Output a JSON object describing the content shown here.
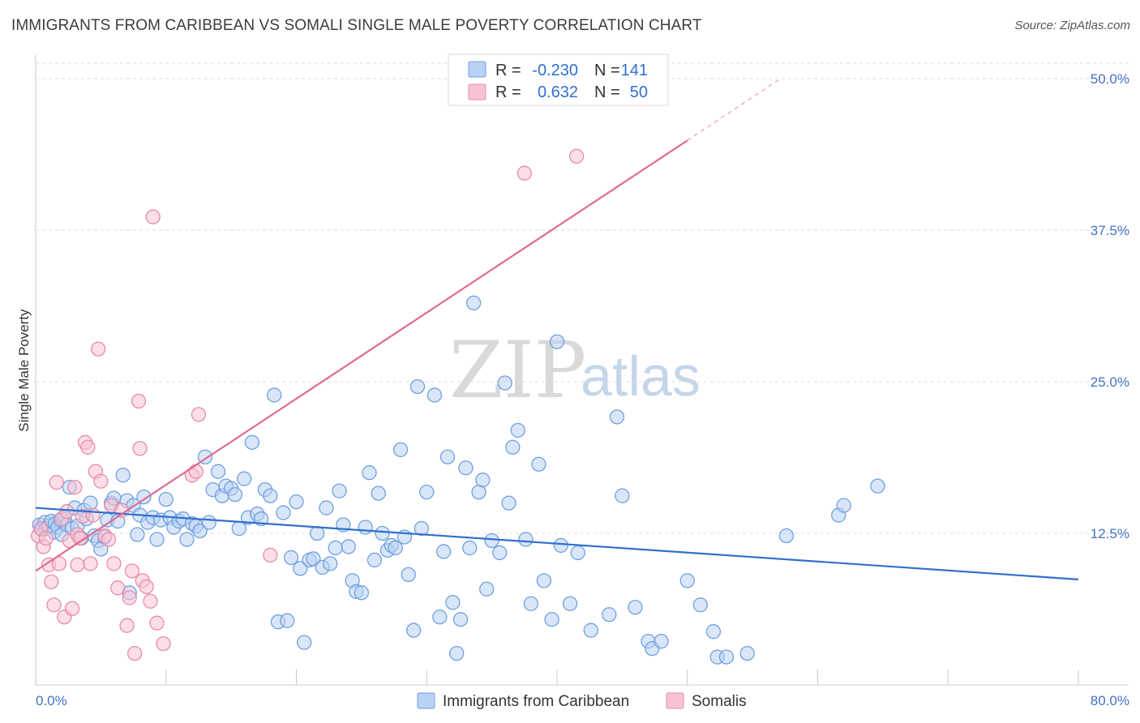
{
  "title": "IMMIGRANTS FROM CARIBBEAN VS SOMALI SINGLE MALE POVERTY CORRELATION CHART",
  "source": "Source: ZipAtlas.com",
  "watermark": {
    "zip": "ZIP",
    "atlas": "atlas"
  },
  "legend": {
    "rows": [
      {
        "r_label": "R =",
        "r_value": "-0.230",
        "n_label": "N =",
        "n_value": "141",
        "color": "#6fa0e0",
        "fill": "#b9d1f3"
      },
      {
        "r_label": "R =",
        "r_value": "0.632",
        "n_label": "N =",
        "n_value": "50",
        "color": "#e98aa9",
        "fill": "#f7c3d3"
      }
    ]
  },
  "bottom_legend": [
    "Immigrants from Caribbean",
    "Somalis"
  ],
  "chart_data": {
    "type": "scatter",
    "title": "IMMIGRANTS FROM CARIBBEAN VS SOMALI SINGLE MALE POVERTY CORRELATION CHART",
    "xlabel": "",
    "ylabel": "Single Male Poverty",
    "xlim": [
      0,
      80
    ],
    "ylim": [
      0,
      50
    ],
    "x_tick_labels": [
      "0.0%",
      "80.0%"
    ],
    "y_ticks": [
      12.5,
      25.0,
      37.5,
      50.0
    ],
    "y_tick_labels": [
      "12.5%",
      "25.0%",
      "37.5%",
      "50.0%"
    ],
    "grid": true,
    "legend_position": "top-center",
    "series": [
      {
        "name": "Immigrants from Caribbean",
        "color": "#6fa0e0",
        "fill": "#b9d1f3",
        "trend": {
          "x": [
            0,
            80
          ],
          "y": [
            14.6,
            8.7
          ]
        },
        "points": [
          [
            0.3,
            13.2
          ],
          [
            0.5,
            12.8
          ],
          [
            0.7,
            13.4
          ],
          [
            0.8,
            12.9
          ],
          [
            1.0,
            13.1
          ],
          [
            1.2,
            13.5
          ],
          [
            1.4,
            12.6
          ],
          [
            1.5,
            13.3
          ],
          [
            1.7,
            13.0
          ],
          [
            1.9,
            13.6
          ],
          [
            2.0,
            12.4
          ],
          [
            2.2,
            13.8
          ],
          [
            2.4,
            13.2
          ],
          [
            2.6,
            16.3
          ],
          [
            2.8,
            12.9
          ],
          [
            3.0,
            14.6
          ],
          [
            3.2,
            13.1
          ],
          [
            3.5,
            12.1
          ],
          [
            3.7,
            14.4
          ],
          [
            3.9,
            13.7
          ],
          [
            4.2,
            15.0
          ],
          [
            4.5,
            12.3
          ],
          [
            4.8,
            11.9
          ],
          [
            5.0,
            11.2
          ],
          [
            5.3,
            12.2
          ],
          [
            5.5,
            13.6
          ],
          [
            5.8,
            15.0
          ],
          [
            6.0,
            15.4
          ],
          [
            6.3,
            13.5
          ],
          [
            6.7,
            17.3
          ],
          [
            7.0,
            15.2
          ],
          [
            7.2,
            7.6
          ],
          [
            7.5,
            14.8
          ],
          [
            7.8,
            12.4
          ],
          [
            8.0,
            14.0
          ],
          [
            8.3,
            15.5
          ],
          [
            8.6,
            13.4
          ],
          [
            9.0,
            13.8
          ],
          [
            9.3,
            12.0
          ],
          [
            9.6,
            13.6
          ],
          [
            10.0,
            15.3
          ],
          [
            10.3,
            13.8
          ],
          [
            10.6,
            13.0
          ],
          [
            11.0,
            13.5
          ],
          [
            11.3,
            13.7
          ],
          [
            11.6,
            12.0
          ],
          [
            12.0,
            13.3
          ],
          [
            12.3,
            13.1
          ],
          [
            12.6,
            12.7
          ],
          [
            13.0,
            18.8
          ],
          [
            13.3,
            13.4
          ],
          [
            13.6,
            16.1
          ],
          [
            14.0,
            17.6
          ],
          [
            14.3,
            15.6
          ],
          [
            14.6,
            16.4
          ],
          [
            15.0,
            16.2
          ],
          [
            15.3,
            15.7
          ],
          [
            15.6,
            12.9
          ],
          [
            16.0,
            17.0
          ],
          [
            16.3,
            13.8
          ],
          [
            16.6,
            20.0
          ],
          [
            17.0,
            14.1
          ],
          [
            17.3,
            13.7
          ],
          [
            17.6,
            16.1
          ],
          [
            18.0,
            15.6
          ],
          [
            18.3,
            23.9
          ],
          [
            18.6,
            5.2
          ],
          [
            19.0,
            14.2
          ],
          [
            19.3,
            5.3
          ],
          [
            19.6,
            10.5
          ],
          [
            20.0,
            15.1
          ],
          [
            20.3,
            9.6
          ],
          [
            20.6,
            3.5
          ],
          [
            21.0,
            10.3
          ],
          [
            21.3,
            10.4
          ],
          [
            21.6,
            12.5
          ],
          [
            22.0,
            9.7
          ],
          [
            22.3,
            14.6
          ],
          [
            22.6,
            10.0
          ],
          [
            23.0,
            11.3
          ],
          [
            23.3,
            16.0
          ],
          [
            23.6,
            13.2
          ],
          [
            24.0,
            11.4
          ],
          [
            24.3,
            8.6
          ],
          [
            24.6,
            7.7
          ],
          [
            25.0,
            7.6
          ],
          [
            25.3,
            13.0
          ],
          [
            25.6,
            17.5
          ],
          [
            26.0,
            10.3
          ],
          [
            26.3,
            15.8
          ],
          [
            26.6,
            12.5
          ],
          [
            27.0,
            11.1
          ],
          [
            27.3,
            11.5
          ],
          [
            27.6,
            11.3
          ],
          [
            28.0,
            19.4
          ],
          [
            28.3,
            12.2
          ],
          [
            28.6,
            9.1
          ],
          [
            29.0,
            4.5
          ],
          [
            29.3,
            24.6
          ],
          [
            29.6,
            12.9
          ],
          [
            30.0,
            15.9
          ],
          [
            30.6,
            23.9
          ],
          [
            31.0,
            5.6
          ],
          [
            31.3,
            11.0
          ],
          [
            31.6,
            18.8
          ],
          [
            32.0,
            6.8
          ],
          [
            32.3,
            2.6
          ],
          [
            32.6,
            5.4
          ],
          [
            33.0,
            17.9
          ],
          [
            33.3,
            11.3
          ],
          [
            33.6,
            31.5
          ],
          [
            34.0,
            15.9
          ],
          [
            34.3,
            16.9
          ],
          [
            34.6,
            7.9
          ],
          [
            35.0,
            11.9
          ],
          [
            35.6,
            10.9
          ],
          [
            36.0,
            24.9
          ],
          [
            36.3,
            15.0
          ],
          [
            36.6,
            19.6
          ],
          [
            37.0,
            21.0
          ],
          [
            37.6,
            12.0
          ],
          [
            38.0,
            6.7
          ],
          [
            38.6,
            18.2
          ],
          [
            39.0,
            8.6
          ],
          [
            39.6,
            5.4
          ],
          [
            40.0,
            28.3
          ],
          [
            40.3,
            11.5
          ],
          [
            41.0,
            6.7
          ],
          [
            41.6,
            10.9
          ],
          [
            42.6,
            4.5
          ],
          [
            44.0,
            5.8
          ],
          [
            44.6,
            22.1
          ],
          [
            45.0,
            15.6
          ],
          [
            46.0,
            6.4
          ],
          [
            47.0,
            3.6
          ],
          [
            47.3,
            3.0
          ],
          [
            48.0,
            3.6
          ],
          [
            50.0,
            8.6
          ],
          [
            51.0,
            6.6
          ],
          [
            52.0,
            4.4
          ],
          [
            52.3,
            2.3
          ],
          [
            53.0,
            2.3
          ],
          [
            54.6,
            2.6
          ],
          [
            57.6,
            12.3
          ],
          [
            61.6,
            14.0
          ],
          [
            62.0,
            14.8
          ],
          [
            64.6,
            16.4
          ]
        ]
      },
      {
        "name": "Somalis",
        "color": "#e98aa9",
        "fill": "#f7c3d3",
        "trend": {
          "x": [
            0,
            50
          ],
          "y": [
            9.4,
            44.9
          ]
        },
        "trend_dashed": {
          "x": [
            50,
            57
          ],
          "y": [
            44.9,
            49.9
          ]
        },
        "points": [
          [
            0.2,
            12.3
          ],
          [
            0.4,
            12.9
          ],
          [
            0.6,
            11.4
          ],
          [
            0.8,
            12.1
          ],
          [
            1.0,
            9.9
          ],
          [
            1.2,
            8.5
          ],
          [
            1.4,
            6.6
          ],
          [
            1.6,
            16.7
          ],
          [
            1.8,
            10.0
          ],
          [
            2.0,
            13.7
          ],
          [
            2.2,
            5.6
          ],
          [
            2.4,
            14.3
          ],
          [
            2.6,
            11.9
          ],
          [
            2.8,
            6.3
          ],
          [
            3.0,
            16.3
          ],
          [
            3.2,
            12.4
          ],
          [
            3.4,
            12.1
          ],
          [
            3.6,
            13.9
          ],
          [
            3.8,
            20.0
          ],
          [
            4.0,
            19.6
          ],
          [
            4.2,
            10.0
          ],
          [
            4.4,
            14.0
          ],
          [
            4.6,
            17.6
          ],
          [
            4.8,
            27.7
          ],
          [
            5.0,
            16.8
          ],
          [
            5.3,
            12.3
          ],
          [
            5.6,
            12.0
          ],
          [
            5.8,
            14.8
          ],
          [
            6.0,
            10.0
          ],
          [
            6.3,
            8.0
          ],
          [
            6.6,
            14.4
          ],
          [
            7.0,
            4.9
          ],
          [
            7.2,
            7.2
          ],
          [
            7.4,
            9.4
          ],
          [
            7.6,
            2.6
          ],
          [
            7.9,
            23.4
          ],
          [
            8.0,
            19.5
          ],
          [
            8.2,
            8.6
          ],
          [
            8.5,
            8.1
          ],
          [
            8.8,
            6.9
          ],
          [
            9.0,
            38.6
          ],
          [
            9.3,
            5.1
          ],
          [
            9.8,
            3.4
          ],
          [
            12.0,
            17.3
          ],
          [
            12.3,
            17.6
          ],
          [
            12.5,
            22.3
          ],
          [
            18.0,
            10.7
          ],
          [
            37.5,
            42.2
          ],
          [
            41.5,
            43.6
          ],
          [
            3.2,
            9.9
          ]
        ]
      }
    ]
  }
}
